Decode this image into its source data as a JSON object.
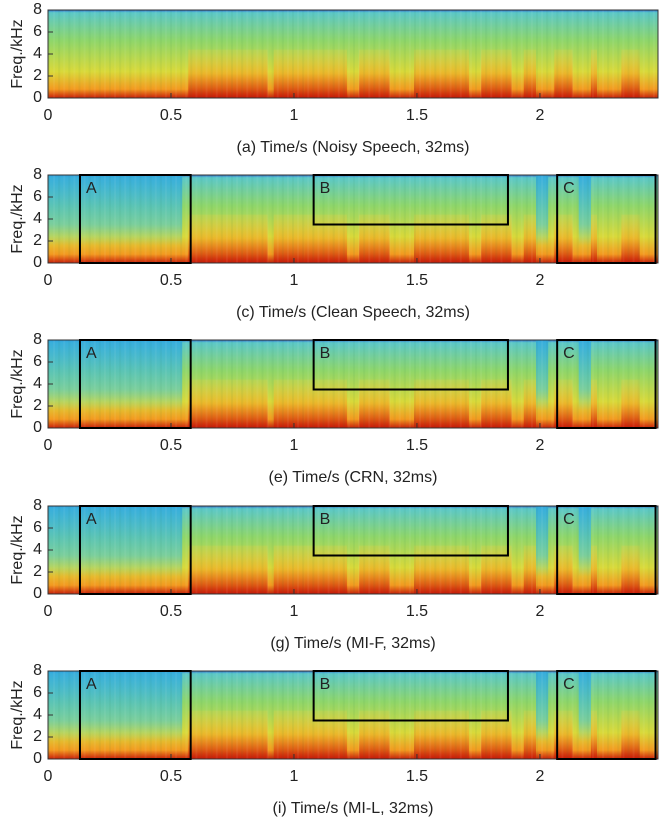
{
  "chart_data": [
    {
      "type": "spectrogram",
      "xlabel": "(a) Time/s (Noisy Speech, 32ms)",
      "ylabel": "Freq./kHz",
      "xlim": [
        0,
        2.48
      ],
      "ylim": [
        0,
        8
      ],
      "xticks": [
        0,
        0.5,
        1,
        1.5,
        2
      ],
      "yticks": [
        0,
        2,
        4,
        6,
        8
      ],
      "regions": []
    },
    {
      "type": "spectrogram",
      "xlabel": "(c) Time/s (Clean Speech, 32ms)",
      "ylabel": "Freq./kHz",
      "xlim": [
        0,
        2.48
      ],
      "ylim": [
        0,
        8
      ],
      "xticks": [
        0,
        0.5,
        1,
        1.5,
        2
      ],
      "yticks": [
        0,
        2,
        4,
        6,
        8
      ],
      "regions": [
        {
          "label": "A",
          "x": [
            0.13,
            0.58
          ],
          "y": [
            0,
            8
          ]
        },
        {
          "label": "B",
          "x": [
            1.08,
            1.87
          ],
          "y": [
            3.5,
            8
          ]
        },
        {
          "label": "C",
          "x": [
            2.07,
            2.47
          ],
          "y": [
            0,
            8
          ]
        }
      ]
    },
    {
      "type": "spectrogram",
      "xlabel": "(e) Time/s (CRN, 32ms)",
      "ylabel": "Freq./kHz",
      "xlim": [
        0,
        2.48
      ],
      "ylim": [
        0,
        8
      ],
      "xticks": [
        0,
        0.5,
        1,
        1.5,
        2
      ],
      "yticks": [
        0,
        2,
        4,
        6,
        8
      ],
      "regions": [
        {
          "label": "A",
          "x": [
            0.13,
            0.58
          ],
          "y": [
            0,
            8
          ]
        },
        {
          "label": "B",
          "x": [
            1.08,
            1.87
          ],
          "y": [
            3.5,
            8
          ]
        },
        {
          "label": "C",
          "x": [
            2.07,
            2.47
          ],
          "y": [
            0,
            8
          ]
        }
      ]
    },
    {
      "type": "spectrogram",
      "xlabel": "(g) Time/s (MI-F, 32ms)",
      "ylabel": "Freq./kHz",
      "xlim": [
        0,
        2.48
      ],
      "ylim": [
        0,
        8
      ],
      "xticks": [
        0,
        0.5,
        1,
        1.5,
        2
      ],
      "yticks": [
        0,
        2,
        4,
        6,
        8
      ],
      "regions": [
        {
          "label": "A",
          "x": [
            0.13,
            0.58
          ],
          "y": [
            0,
            8
          ]
        },
        {
          "label": "B",
          "x": [
            1.08,
            1.87
          ],
          "y": [
            3.5,
            8
          ]
        },
        {
          "label": "C",
          "x": [
            2.07,
            2.47
          ],
          "y": [
            0,
            8
          ]
        }
      ]
    },
    {
      "type": "spectrogram",
      "xlabel": "(i) Time/s (MI-L, 32ms)",
      "ylabel": "Freq./kHz",
      "xlim": [
        0,
        2.48
      ],
      "ylim": [
        0,
        8
      ],
      "xticks": [
        0,
        0.5,
        1,
        1.5,
        2
      ],
      "yticks": [
        0,
        2,
        4,
        6,
        8
      ],
      "regions": [
        {
          "label": "A",
          "x": [
            0.13,
            0.58
          ],
          "y": [
            0,
            8
          ]
        },
        {
          "label": "B",
          "x": [
            1.08,
            1.87
          ],
          "y": [
            3.5,
            8
          ]
        },
        {
          "label": "C",
          "x": [
            2.07,
            2.47
          ],
          "y": [
            0,
            8
          ]
        }
      ]
    }
  ]
}
